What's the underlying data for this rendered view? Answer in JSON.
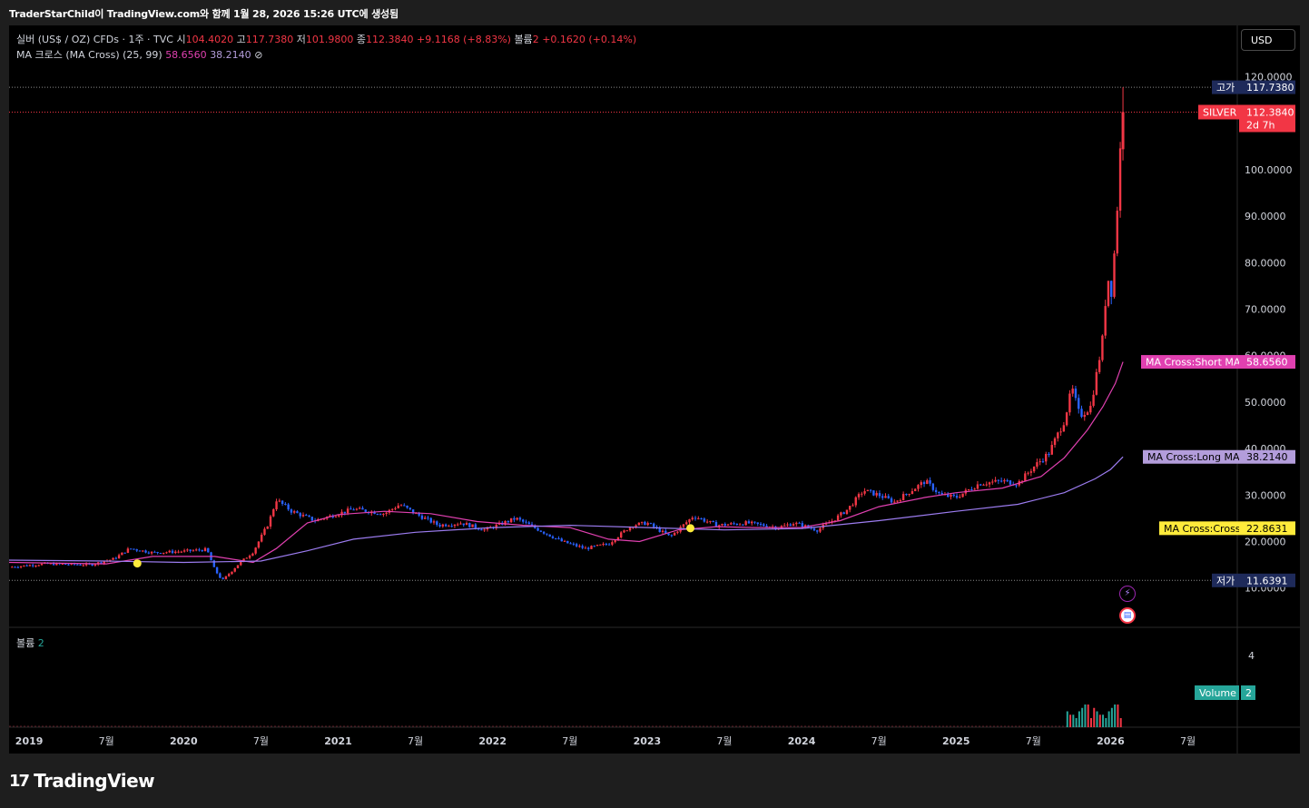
{
  "header": {
    "caption": "TraderStarChild이 TradingView.com와 함께 1월 28, 2026 15:26 UTC에 생성됨"
  },
  "legend": {
    "symbol": "실버 (US$ / OZ) CFDs · 1주 · TVC",
    "open_label": "시",
    "open": "104.4020",
    "high_label": "고",
    "high": "117.7380",
    "low_label": "저",
    "low": "101.9800",
    "close_label": "종",
    "close": "112.3840",
    "change": "+9.1168 (+8.83%)",
    "volume_label": "볼륨",
    "volume": "2",
    "volume_change": "+0.1620 (+0.14%)",
    "ma_name": "MA 크로스 (MA Cross) (25, 99)",
    "ma_short": "58.6560",
    "ma_long": "38.2140",
    "hide_icon": "⊘"
  },
  "volume_pane": {
    "label": "볼륨",
    "value": "2",
    "tag_label": "Volume",
    "tag_value": "2",
    "axis_tick": "4"
  },
  "currency_button": "USD",
  "footer": {
    "logo_mark": "17",
    "logo_text": "TradingView"
  },
  "colors": {
    "up": "#f23645",
    "down": "#2962ff",
    "short_ma": "#e040b0",
    "long_ma": "#9c7cf0",
    "cross": "#ffeb3b",
    "background": "#000000",
    "volume_teal": "#26a69a"
  },
  "chart_data": {
    "type": "line",
    "title": "",
    "symbol": "실버 (US$ / OZ) CFDs",
    "interval": "1주",
    "y_scale": "linear",
    "ylim": [
      0,
      127
    ],
    "y_ticks": [
      {
        "value": 10,
        "label": "10.0000"
      },
      {
        "value": 20,
        "label": "20.0000"
      },
      {
        "value": 30,
        "label": "30.0000"
      },
      {
        "value": 40,
        "label": "40.0000"
      },
      {
        "value": 50,
        "label": "50.0000"
      },
      {
        "value": 60,
        "label": "60.0000"
      },
      {
        "value": 70,
        "label": "70.0000"
      },
      {
        "value": 80,
        "label": "80.0000"
      },
      {
        "value": 90,
        "label": "90.0000"
      },
      {
        "value": 100,
        "label": "100.0000"
      },
      {
        "value": 120,
        "label": "120.0000"
      }
    ],
    "x_range": [
      2018.87,
      2026.82
    ],
    "x_ticks": [
      {
        "t": 2019.0,
        "label": "2019"
      },
      {
        "t": 2019.5,
        "label": "7월"
      },
      {
        "t": 2020.0,
        "label": "2020"
      },
      {
        "t": 2020.5,
        "label": "7월"
      },
      {
        "t": 2021.0,
        "label": "2021"
      },
      {
        "t": 2021.5,
        "label": "7월"
      },
      {
        "t": 2022.0,
        "label": "2022"
      },
      {
        "t": 2022.5,
        "label": "7월"
      },
      {
        "t": 2023.0,
        "label": "2023"
      },
      {
        "t": 2023.5,
        "label": "7월"
      },
      {
        "t": 2024.0,
        "label": "2024"
      },
      {
        "t": 2024.5,
        "label": "7월"
      },
      {
        "t": 2025.0,
        "label": "2025"
      },
      {
        "t": 2025.5,
        "label": "7월"
      },
      {
        "t": 2026.0,
        "label": "2026"
      },
      {
        "t": 2026.5,
        "label": "7월"
      }
    ],
    "price_path": [
      [
        2018.87,
        14.5
      ],
      [
        2019.1,
        15.2
      ],
      [
        2019.4,
        15.0
      ],
      [
        2019.55,
        16.3
      ],
      [
        2019.65,
        18.5
      ],
      [
        2019.8,
        17.6
      ],
      [
        2020.0,
        17.9
      ],
      [
        2020.15,
        18.3
      ],
      [
        2020.2,
        14.0
      ],
      [
        2020.25,
        11.6
      ],
      [
        2020.35,
        15.0
      ],
      [
        2020.45,
        17.8
      ],
      [
        2020.55,
        24.0
      ],
      [
        2020.6,
        29.0
      ],
      [
        2020.7,
        26.5
      ],
      [
        2020.85,
        24.5
      ],
      [
        2020.95,
        25.5
      ],
      [
        2021.1,
        27.0
      ],
      [
        2021.3,
        26.0
      ],
      [
        2021.4,
        28.0
      ],
      [
        2021.5,
        26.0
      ],
      [
        2021.65,
        23.5
      ],
      [
        2021.8,
        24.0
      ],
      [
        2021.95,
        22.5
      ],
      [
        2022.15,
        25.0
      ],
      [
        2022.3,
        22.5
      ],
      [
        2022.45,
        20.0
      ],
      [
        2022.6,
        18.5
      ],
      [
        2022.75,
        19.5
      ],
      [
        2022.9,
        23.5
      ],
      [
        2023.0,
        24.0
      ],
      [
        2023.15,
        21.0
      ],
      [
        2023.3,
        25.5
      ],
      [
        2023.45,
        23.5
      ],
      [
        2023.65,
        24.0
      ],
      [
        2023.85,
        23.0
      ],
      [
        2023.95,
        24.0
      ],
      [
        2024.1,
        22.5
      ],
      [
        2024.2,
        24.5
      ],
      [
        2024.3,
        27.0
      ],
      [
        2024.4,
        31.0
      ],
      [
        2024.5,
        30.0
      ],
      [
        2024.6,
        28.5
      ],
      [
        2024.8,
        33.0
      ],
      [
        2024.9,
        30.0
      ],
      [
        2025.0,
        29.5
      ],
      [
        2025.15,
        32.5
      ],
      [
        2025.3,
        33.0
      ],
      [
        2025.4,
        32.5
      ],
      [
        2025.5,
        36.0
      ],
      [
        2025.6,
        39.0
      ],
      [
        2025.7,
        46.0
      ],
      [
        2025.75,
        53.0
      ],
      [
        2025.8,
        47.0
      ],
      [
        2025.87,
        49.0
      ],
      [
        2025.92,
        58.0
      ],
      [
        2025.95,
        64.0
      ],
      [
        2025.98,
        78.0
      ],
      [
        2026.0,
        72.0
      ],
      [
        2026.02,
        80.0
      ],
      [
        2026.04,
        90.0
      ],
      [
        2026.06,
        103.0
      ],
      [
        2026.08,
        112.384
      ]
    ],
    "series": [
      {
        "name": "MA Cross:Short MA",
        "value": 58.656,
        "points": [
          [
            2018.87,
            15.5
          ],
          [
            2019.5,
            15.2
          ],
          [
            2019.8,
            16.8
          ],
          [
            2020.2,
            16.8
          ],
          [
            2020.45,
            15.5
          ],
          [
            2020.6,
            18.5
          ],
          [
            2020.8,
            24.0
          ],
          [
            2021.0,
            25.8
          ],
          [
            2021.3,
            26.5
          ],
          [
            2021.6,
            26.0
          ],
          [
            2021.9,
            24.3
          ],
          [
            2022.2,
            23.5
          ],
          [
            2022.5,
            23.0
          ],
          [
            2022.75,
            20.5
          ],
          [
            2022.95,
            20.0
          ],
          [
            2023.2,
            22.5
          ],
          [
            2023.45,
            23.2
          ],
          [
            2023.7,
            23.0
          ],
          [
            2024.0,
            23.0
          ],
          [
            2024.25,
            24.5
          ],
          [
            2024.5,
            27.5
          ],
          [
            2024.8,
            29.5
          ],
          [
            2025.0,
            30.5
          ],
          [
            2025.3,
            31.5
          ],
          [
            2025.55,
            34.0
          ],
          [
            2025.7,
            38.0
          ],
          [
            2025.85,
            44.0
          ],
          [
            2025.95,
            49.0
          ],
          [
            2026.03,
            54.0
          ],
          [
            2026.08,
            58.656
          ]
        ]
      },
      {
        "name": "MA Cross:Long MA",
        "value": 38.214,
        "points": [
          [
            2018.87,
            16.0
          ],
          [
            2019.5,
            15.8
          ],
          [
            2020.0,
            15.5
          ],
          [
            2020.5,
            15.8
          ],
          [
            2020.8,
            18.0
          ],
          [
            2021.1,
            20.5
          ],
          [
            2021.5,
            22.0
          ],
          [
            2022.0,
            23.0
          ],
          [
            2022.5,
            23.5
          ],
          [
            2023.0,
            23.0
          ],
          [
            2023.5,
            22.5
          ],
          [
            2024.0,
            22.8
          ],
          [
            2024.5,
            24.5
          ],
          [
            2025.0,
            26.5
          ],
          [
            2025.4,
            28.0
          ],
          [
            2025.7,
            30.5
          ],
          [
            2025.9,
            33.5
          ],
          [
            2026.0,
            35.5
          ],
          [
            2026.08,
            38.214
          ]
        ]
      },
      {
        "name": "MA Cross:Cross",
        "value": 22.8631,
        "cross_points": [
          [
            2019.7,
            15.3
          ],
          [
            2023.28,
            22.8631
          ]
        ]
      }
    ],
    "price_labels": [
      {
        "name": "고가",
        "value": 117.738,
        "label": "117.7380",
        "color": "#1e2a5a"
      },
      {
        "name": "SILVER",
        "value": 112.384,
        "label": "112.3840",
        "sub": "2d 7h",
        "color": "#f23645"
      },
      {
        "name": "MA Cross:Short MA",
        "value": 58.656,
        "label": "58.6560",
        "color": "#e040b0"
      },
      {
        "name": "MA Cross:Long MA",
        "value": 38.214,
        "label": "38.2140",
        "color": "#b39ddb"
      },
      {
        "name": "MA Cross:Cross",
        "value": 22.8631,
        "label": "22.8631",
        "color": "#ffeb3b"
      },
      {
        "name": "저가",
        "value": 11.6391,
        "label": "11.6391",
        "color": "#1e2a5a"
      }
    ],
    "volume_ticks": [
      4
    ],
    "grid": false,
    "legend": "top-left"
  }
}
